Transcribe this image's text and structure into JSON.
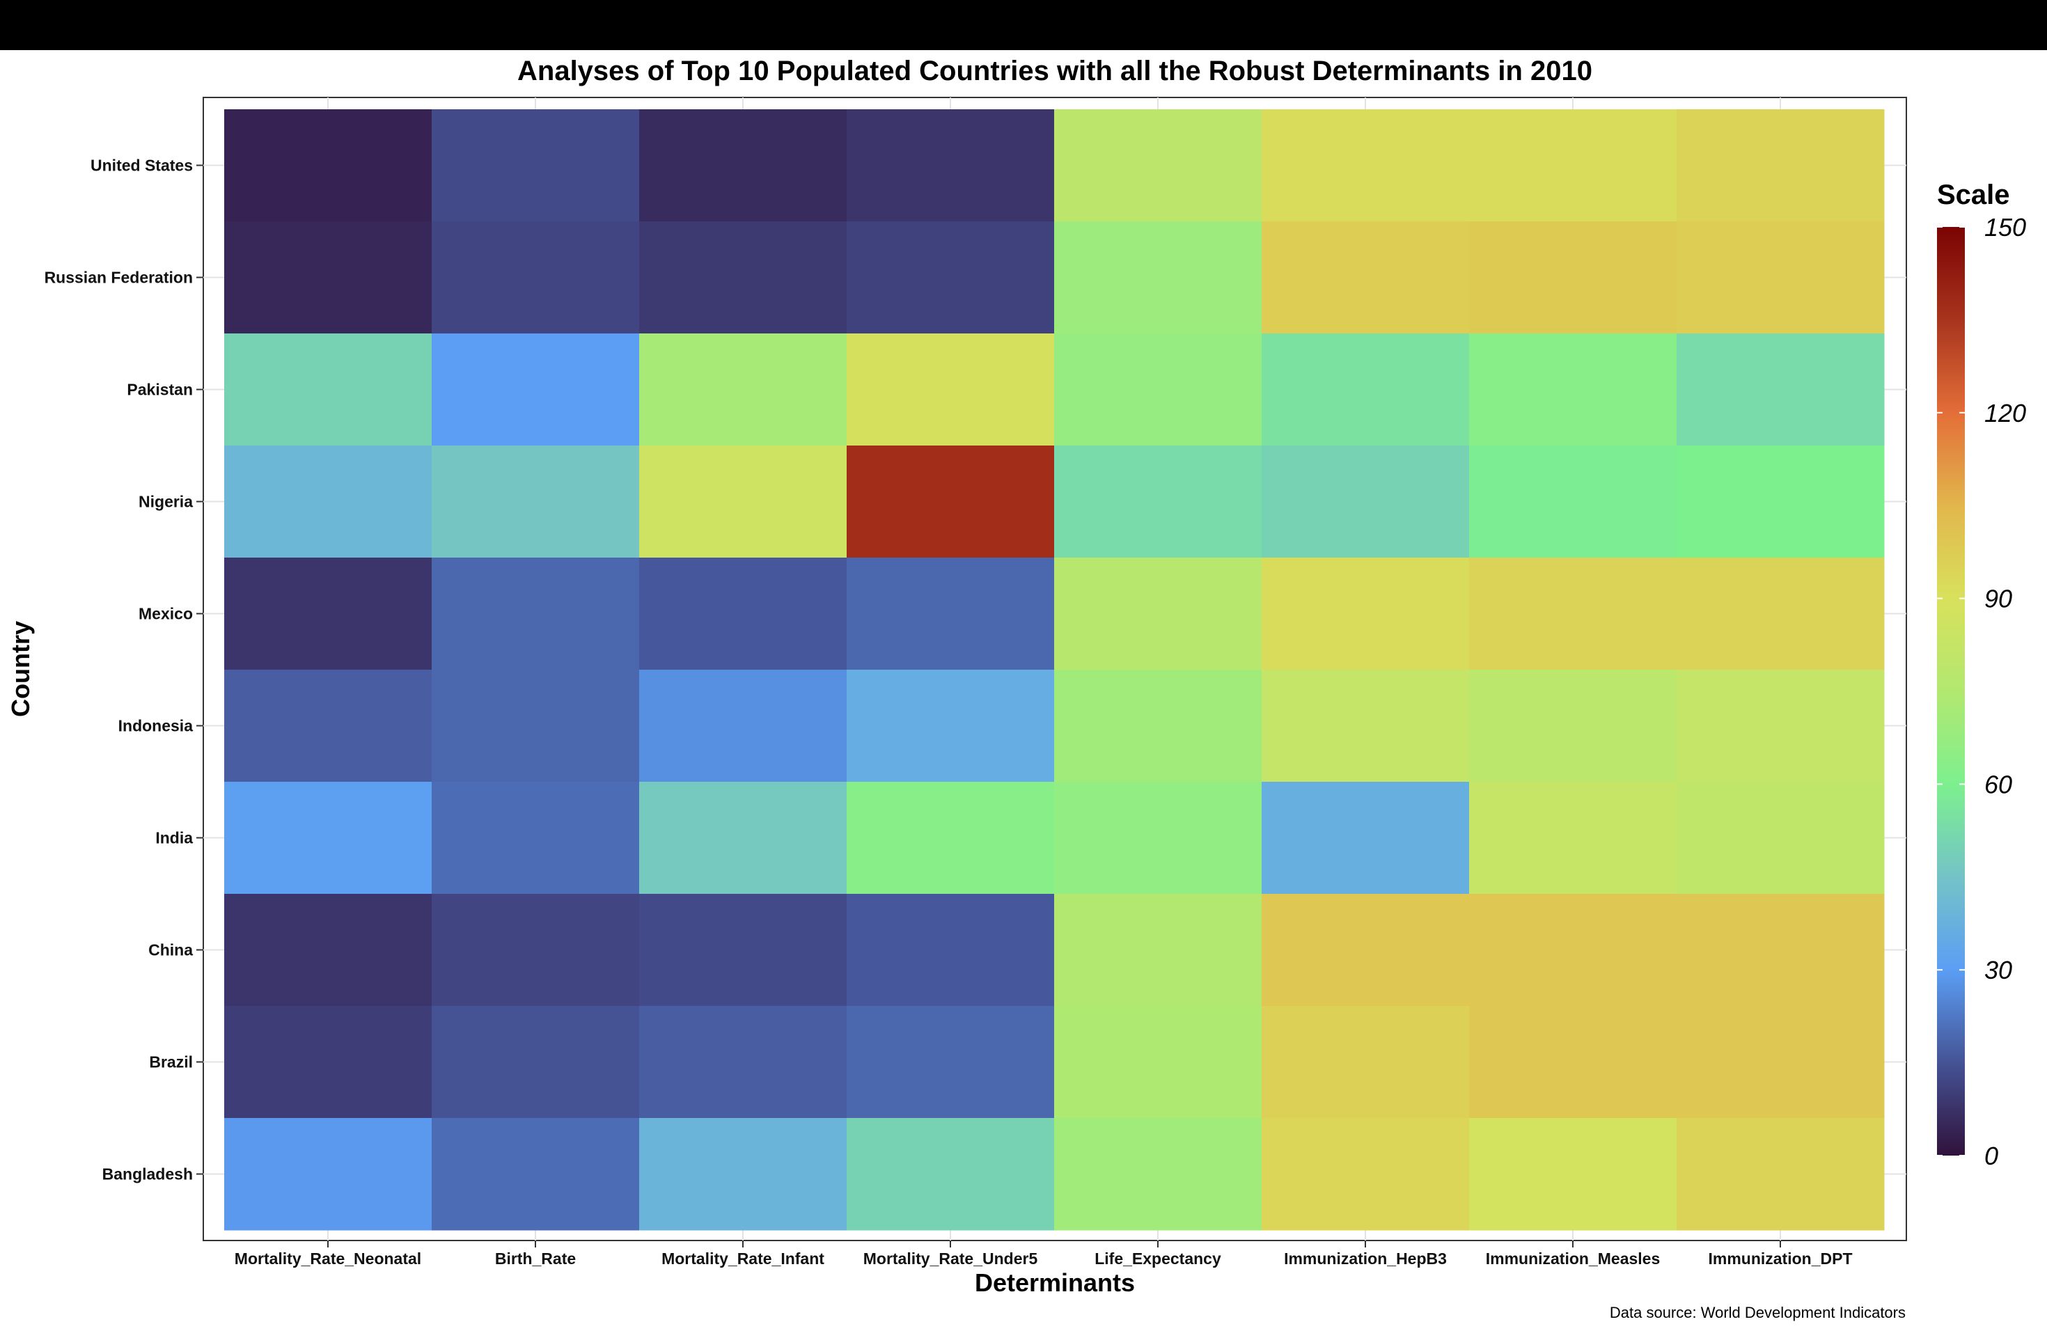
{
  "chart_data": {
    "type": "heatmap",
    "title": "Analyses of Top 10 Populated Countries with all the Robust Determinants in 2010",
    "xlabel": "Determinants",
    "ylabel": "Country",
    "caption": "Data source: World Development Indicators",
    "x": [
      "Mortality_Rate_Neonatal",
      "Birth_Rate",
      "Mortality_Rate_Infant",
      "Mortality_Rate_Under5",
      "Life_Expectancy",
      "Immunization_HepB3",
      "Immunization_Measles",
      "Immunization_DPT"
    ],
    "y": [
      "United States",
      "Russian Federation",
      "Pakistan",
      "Nigeria",
      "Mexico",
      "Indonesia",
      "India",
      "China",
      "Brazil",
      "Bangladesh"
    ],
    "values": [
      [
        4,
        13,
        6,
        8,
        79,
        92,
        92,
        95
      ],
      [
        5,
        12,
        9,
        11,
        69,
        97,
        98,
        97
      ],
      [
        50,
        30,
        72,
        89,
        67,
        55,
        63,
        53
      ],
      [
        40,
        46,
        86,
        137,
        53,
        50,
        59,
        60
      ],
      [
        8,
        19,
        16,
        19,
        77,
        92,
        95,
        95
      ],
      [
        17,
        19,
        27,
        36,
        70,
        82,
        78,
        82
      ],
      [
        31,
        20,
        47,
        63,
        66,
        37,
        83,
        80
      ],
      [
        8,
        12,
        13,
        16,
        75,
        99,
        99,
        99
      ],
      [
        10,
        15,
        17,
        19,
        74,
        96,
        99,
        99
      ],
      [
        29,
        20,
        39,
        50,
        70,
        94,
        88,
        95
      ]
    ],
    "legend": {
      "title": "Scale",
      "min": 0,
      "max": 150,
      "ticks": [
        0,
        30,
        60,
        90,
        120,
        150
      ],
      "placement": "right"
    },
    "colorscale": {
      "stops": [
        0,
        15,
        30,
        45,
        60,
        75,
        90,
        105,
        120,
        135,
        150
      ],
      "colors": [
        "#30123b",
        "#455395",
        "#5b9ef4",
        "#74c3c7",
        "#7df08e",
        "#b2e870",
        "#d8e15c",
        "#e2b64c",
        "#e36e38",
        "#a8341e",
        "#7a0403"
      ]
    },
    "grid": true
  }
}
